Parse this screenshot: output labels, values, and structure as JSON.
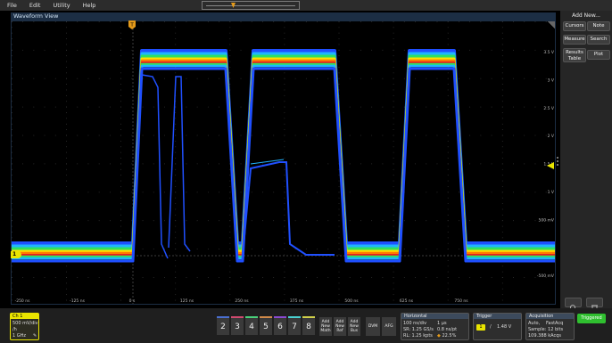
{
  "menu": {
    "items": [
      "File",
      "Edit",
      "Utility",
      "Help"
    ]
  },
  "waveform_view": {
    "title": "Waveform View",
    "y_labels": [
      "3.5 V",
      "3 V",
      "2.5 V",
      "2 V",
      "1.5 V",
      "1 V",
      "500 mV",
      "0 V",
      "-500 mV"
    ],
    "x_labels": [
      "-250 ns",
      "-125 ns",
      "0 s",
      "125 ns",
      "250 ns",
      "375 ns",
      "500 ns",
      "625 ns",
      "750 ns"
    ],
    "trigger_marker": "T",
    "channel_marker": "1"
  },
  "side_panel": {
    "title": "Add New...",
    "buttons": [
      "Cursors",
      "Note",
      "Measure",
      "Search",
      "Results Table",
      "Plot"
    ]
  },
  "ch1": {
    "label": "Ch 1",
    "scale": "500 mV/div",
    "coupling": "/h",
    "bandwidth": "1 GHz",
    "color": "#e9e400"
  },
  "channel_buttons": [
    "2",
    "3",
    "4",
    "5",
    "6",
    "7",
    "8"
  ],
  "add_buttons": [
    "Add New Math",
    "Add New Ref",
    "Add New Bus"
  ],
  "tool_buttons": [
    "DVM",
    "AFG"
  ],
  "horizontal": {
    "label": "Horizontal",
    "scale": "100 ns/div",
    "record": "1 µs",
    "sample_rate": "SR: 1.25 GS/s",
    "resolution": "0.8 ns/pt",
    "record_length": "RL: 1.25 kpts",
    "position": "22.5%"
  },
  "trigger": {
    "label": "Trigger",
    "source": "1",
    "slope": "/",
    "level": "1.48 V"
  },
  "acquisition": {
    "label": "Acquisition",
    "mode": "Auto,",
    "mode2": "FastAcq",
    "sample": "Sample: 12 bits",
    "count": "109.388 kAcqs"
  },
  "status": {
    "triggered": "Triggered",
    "color": "#2fbf2f"
  }
}
